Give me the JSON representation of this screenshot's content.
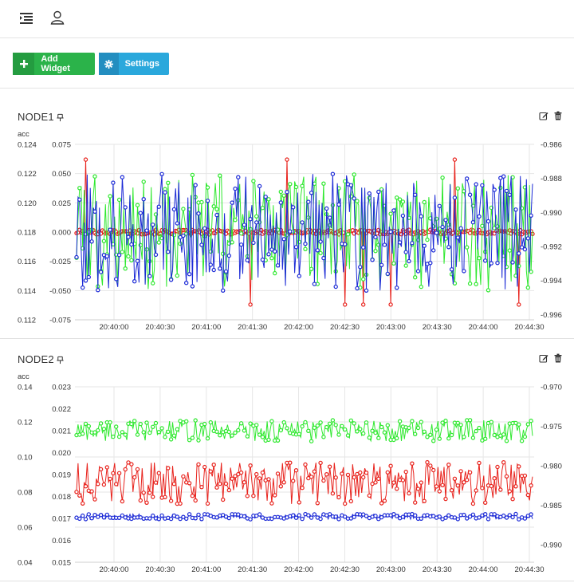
{
  "header": {
    "menu_icon": "list-indent-icon",
    "user_icon": "user-icon"
  },
  "toolbar": {
    "add_widget_label": "Add Widget",
    "settings_label": "Settings"
  },
  "colors": {
    "red": "#e8221c",
    "green": "#2ee82e",
    "blue": "#1c2ad6",
    "grid": "#e6e6e6",
    "add_button": "#2bb34a",
    "settings_button": "#2aa8dc"
  },
  "widgets": [
    {
      "title": "NODE1",
      "unit_label": "acc",
      "left_axis": {
        "ticks": [
          "0.124",
          "0.122",
          "0.120",
          "0.118",
          "0.116",
          "0.114",
          "0.112"
        ],
        "range": [
          0.112,
          0.124
        ]
      },
      "mid_axis": {
        "ticks": [
          "0.075",
          "0.050",
          "0.025",
          "0.000",
          "-0.025",
          "-0.050",
          "-0.075"
        ],
        "range": [
          -0.075,
          0.075
        ]
      },
      "right_axis": {
        "ticks": [
          "-0.986",
          "-0.988",
          "-0.990",
          "-0.992",
          "-0.994",
          "-0.996"
        ],
        "range": [
          -0.996,
          -0.9855
        ]
      },
      "x_ticks": [
        "20:40:00",
        "20:40:30",
        "20:41:00",
        "20:41:30",
        "20:42:00",
        "20:42:30",
        "20:43:00",
        "20:43:30",
        "20:44:00",
        "20:44:30"
      ]
    },
    {
      "title": "NODE2",
      "unit_label": "acc",
      "left_axis": {
        "ticks": [
          "0.14",
          "0.12",
          "0.10",
          "0.08",
          "0.06",
          "0.04"
        ],
        "range": [
          0.04,
          0.14
        ]
      },
      "mid_axis": {
        "ticks": [
          "0.023",
          "0.022",
          "0.021",
          "0.020",
          "0.019",
          "0.018",
          "0.017",
          "0.016",
          "0.015"
        ],
        "range": [
          0.015,
          0.023
        ]
      },
      "right_axis": {
        "ticks": [
          "-0.970",
          "-0.975",
          "-0.980",
          "-0.985",
          "-0.990"
        ],
        "range": [
          -0.992,
          -0.97
        ]
      },
      "x_ticks": [
        "20:40:00",
        "20:40:30",
        "20:41:00",
        "20:41:30",
        "20:42:00",
        "20:42:30",
        "20:43:00",
        "20:43:30",
        "20:44:00",
        "20:44:30"
      ]
    }
  ],
  "chart_data": [
    {
      "type": "line",
      "title": "NODE1",
      "ylabel": "acc",
      "x_range": [
        "20:39:35",
        "20:44:45"
      ],
      "series": [
        {
          "color": "red",
          "axis": "mid",
          "baseline": 0.0,
          "spread": 0.002,
          "spikes": [
            [
              0.02,
              0.062
            ],
            [
              0.38,
              -0.062
            ],
            [
              0.46,
              0.062
            ],
            [
              0.59,
              -0.062
            ],
            [
              0.63,
              -0.062
            ],
            [
              0.69,
              -0.062
            ],
            [
              0.83,
              0.062
            ],
            [
              0.97,
              -0.062
            ]
          ]
        },
        {
          "color": "green",
          "axis": "mid",
          "center": 0.0,
          "amplitude": 0.05
        },
        {
          "color": "blue",
          "axis": "mid",
          "center": 0.0,
          "amplitude": 0.05
        }
      ],
      "ylim": [
        -0.075,
        0.075
      ]
    },
    {
      "type": "line",
      "title": "NODE2",
      "ylabel": "acc",
      "x_range": [
        "20:39:35",
        "20:44:45"
      ],
      "series": [
        {
          "color": "green",
          "axis": "left",
          "center": 0.115,
          "amplitude": 0.006
        },
        {
          "color": "red",
          "axis": "left",
          "center": 0.085,
          "amplitude": 0.012
        },
        {
          "color": "blue",
          "axis": "left",
          "center": 0.066,
          "amplitude": 0.0015
        }
      ],
      "ylim": [
        0.04,
        0.14
      ]
    }
  ]
}
